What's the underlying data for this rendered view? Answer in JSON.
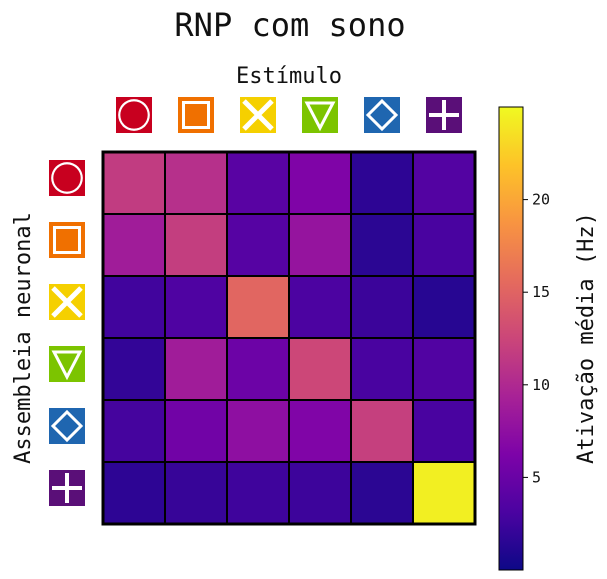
{
  "chart_data": {
    "type": "heatmap",
    "title": "RNP com sono",
    "xlabel": "Estímulo",
    "ylabel": "Assembleia neuronal",
    "colorbar_label": "Ativação média (Hz)",
    "colormap": "plasma",
    "vmin": 0,
    "vmax": 25,
    "colorbar_ticks": [
      "5",
      "10",
      "15",
      "20"
    ],
    "colorbar_tick_values": [
      5,
      10,
      15,
      20
    ],
    "rows": [
      "circle",
      "square",
      "x-cross",
      "down-triangle",
      "diamond",
      "plus"
    ],
    "columns": [
      "circle",
      "square",
      "x-cross",
      "down-triangle",
      "diamond",
      "plus"
    ],
    "values": [
      [
        11.6,
        10.6,
        4.0,
        6.4,
        1.6,
        3.6
      ],
      [
        8.8,
        11.8,
        3.8,
        8.0,
        1.5,
        3.0
      ],
      [
        2.6,
        3.4,
        15.2,
        3.2,
        2.3,
        1.3
      ],
      [
        1.9,
        8.8,
        5.2,
        12.6,
        3.0,
        3.5
      ],
      [
        2.8,
        5.5,
        7.5,
        6.5,
        12.0,
        3.0
      ],
      [
        1.6,
        2.1,
        2.5,
        2.4,
        1.5,
        24.4
      ]
    ]
  },
  "icons": [
    {
      "name": "circle",
      "color": "#c8001f",
      "bg": "#c8001f"
    },
    {
      "name": "square",
      "color": "#f07000",
      "bg": "#f07000"
    },
    {
      "name": "x-cross",
      "color": "#f5d000",
      "bg": "#f5d000"
    },
    {
      "name": "down-triangle",
      "color": "#7cc400",
      "bg": "#7cc400"
    },
    {
      "name": "diamond",
      "color": "#1f66b0",
      "bg": "#1f66b0"
    },
    {
      "name": "plus",
      "color": "#5a0f78",
      "bg": "#5a0f78"
    }
  ]
}
